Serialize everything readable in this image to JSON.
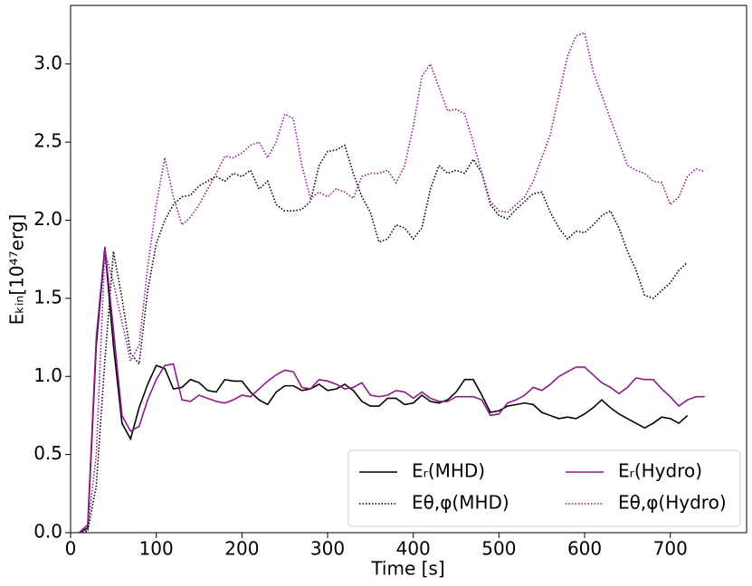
{
  "chart_data": {
    "type": "line",
    "xlabel": "Time [s]",
    "ylabel": "Eₖᵢₙ[10⁴⁷erg]",
    "x": [
      10,
      20,
      30,
      40,
      50,
      60,
      70,
      80,
      90,
      100,
      110,
      120,
      130,
      140,
      150,
      160,
      170,
      180,
      190,
      200,
      210,
      220,
      230,
      240,
      250,
      260,
      270,
      280,
      290,
      300,
      310,
      320,
      330,
      340,
      350,
      360,
      370,
      380,
      390,
      400,
      410,
      420,
      430,
      440,
      450,
      460,
      470,
      480,
      490,
      500,
      510,
      520,
      530,
      540,
      550,
      560,
      570,
      580,
      590,
      600,
      610,
      620,
      630,
      640,
      650,
      660,
      670,
      680,
      690,
      700,
      710,
      720,
      730,
      740
    ],
    "series": [
      {
        "name": "Eᵣ(MHD)",
        "color": "#000000",
        "linestyle": "solid",
        "values": [
          0,
          0.03,
          1.2,
          1.82,
          1.2,
          0.7,
          0.6,
          0.8,
          0.95,
          1.07,
          1.05,
          0.92,
          0.93,
          0.98,
          0.96,
          0.91,
          0.9,
          0.98,
          0.97,
          0.97,
          0.9,
          0.85,
          0.82,
          0.9,
          0.94,
          0.94,
          0.91,
          0.92,
          0.95,
          0.91,
          0.92,
          0.95,
          0.91,
          0.84,
          0.81,
          0.81,
          0.86,
          0.86,
          0.82,
          0.83,
          0.88,
          0.84,
          0.83,
          0.85,
          0.9,
          0.98,
          0.98,
          0.88,
          0.77,
          0.78,
          0.81,
          0.82,
          0.83,
          0.82,
          0.77,
          0.75,
          0.73,
          0.74,
          0.73,
          0.76,
          0.8,
          0.85,
          0.8,
          0.76,
          0.73,
          0.7,
          0.67,
          0.7,
          0.74,
          0.73,
          0.7,
          0.75,
          null,
          null
        ]
      },
      {
        "name": "Eθ,φ(MHD)",
        "color": "#000000",
        "linestyle": "dotted",
        "values": [
          0,
          0.01,
          0.3,
          1.1,
          1.8,
          1.5,
          1.15,
          1.08,
          1.55,
          1.85,
          2.0,
          2.1,
          2.15,
          2.16,
          2.22,
          2.25,
          2.28,
          2.25,
          2.3,
          2.28,
          2.32,
          2.2,
          2.25,
          2.1,
          2.06,
          2.06,
          2.07,
          2.12,
          2.35,
          2.44,
          2.45,
          2.48,
          2.3,
          2.15,
          2.05,
          1.86,
          1.88,
          1.97,
          1.95,
          1.88,
          1.95,
          2.2,
          2.35,
          2.3,
          2.32,
          2.3,
          2.39,
          2.3,
          2.1,
          2.03,
          2.01,
          2.07,
          2.12,
          2.17,
          2.18,
          2.05,
          1.95,
          1.88,
          1.93,
          1.92,
          1.97,
          2.03,
          2.06,
          1.95,
          1.8,
          1.68,
          1.52,
          1.5,
          1.55,
          1.6,
          1.68,
          1.73,
          null,
          null
        ]
      },
      {
        "name": "Eᵣ(Hydro)",
        "color": "#8b1a8b",
        "linestyle": "solid",
        "values": [
          0,
          0.05,
          1.25,
          1.83,
          1.3,
          0.75,
          0.65,
          0.68,
          0.85,
          0.98,
          1.07,
          1.08,
          0.85,
          0.84,
          0.88,
          0.86,
          0.84,
          0.83,
          0.85,
          0.88,
          0.87,
          0.92,
          0.97,
          1.01,
          1.04,
          1.03,
          0.93,
          0.92,
          0.98,
          0.97,
          0.95,
          0.92,
          0.93,
          0.96,
          0.88,
          0.87,
          0.88,
          0.91,
          0.9,
          0.86,
          0.9,
          0.86,
          0.84,
          0.84,
          0.87,
          0.87,
          0.87,
          0.85,
          0.75,
          0.76,
          0.83,
          0.85,
          0.88,
          0.93,
          0.91,
          0.95,
          1.0,
          1.03,
          1.06,
          1.06,
          1.01,
          0.96,
          0.93,
          0.89,
          0.93,
          0.99,
          0.98,
          0.98,
          0.92,
          0.87,
          0.81,
          0.85,
          0.87,
          0.87
        ]
      },
      {
        "name": "Eθ,φ(Hydro)",
        "color": "#8b1a8b",
        "linestyle": "dotted",
        "values": [
          0,
          0.02,
          0.5,
          1.8,
          1.6,
          1.35,
          1.1,
          1.2,
          1.7,
          2.1,
          2.4,
          2.15,
          1.97,
          2.02,
          2.1,
          2.2,
          2.3,
          2.41,
          2.4,
          2.43,
          2.48,
          2.5,
          2.4,
          2.5,
          2.68,
          2.65,
          2.35,
          2.14,
          2.18,
          2.15,
          2.2,
          2.18,
          2.14,
          2.28,
          2.3,
          2.3,
          2.32,
          2.24,
          2.35,
          2.6,
          2.92,
          3.0,
          2.85,
          2.7,
          2.71,
          2.68,
          2.5,
          2.3,
          2.12,
          2.06,
          2.05,
          2.1,
          2.15,
          2.25,
          2.4,
          2.55,
          2.8,
          3.05,
          3.18,
          3.2,
          2.95,
          2.8,
          2.65,
          2.5,
          2.35,
          2.32,
          2.3,
          2.25,
          2.24,
          2.1,
          2.15,
          2.28,
          2.33,
          2.31
        ]
      }
    ],
    "xlim": [
      0,
      789
    ],
    "xticks": [
      0,
      100,
      200,
      300,
      400,
      500,
      600,
      700
    ],
    "ylim": [
      0,
      3.375
    ],
    "yticks": [
      {
        "value": 0,
        "label": "0.0"
      },
      0.5,
      {
        "value": 1,
        "label": "1.0"
      },
      1.5,
      {
        "value": 2,
        "label": "2.0"
      },
      2.5,
      {
        "value": 3,
        "label": "3.0"
      }
    ],
    "grid": false,
    "legend": "lower right"
  }
}
